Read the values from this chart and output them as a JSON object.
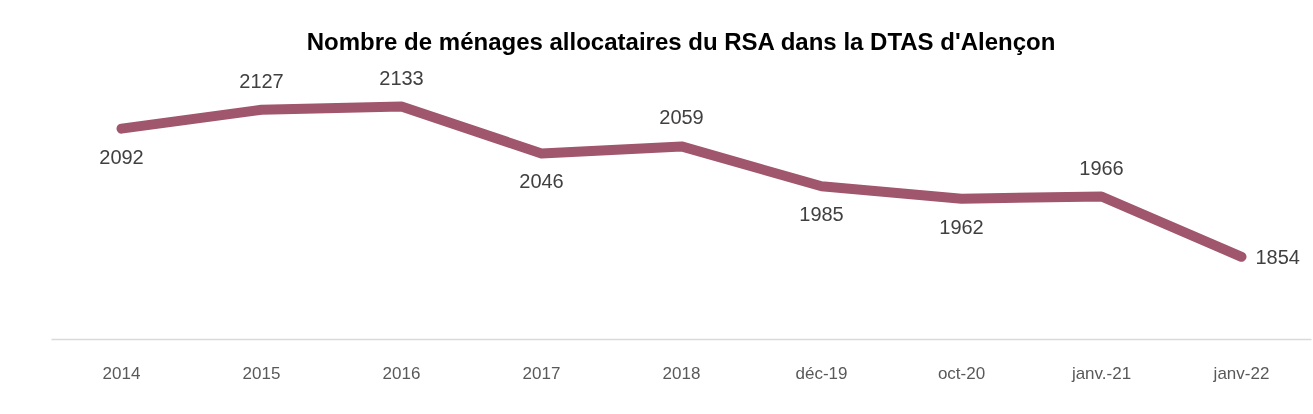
{
  "chart_data": {
    "type": "line",
    "title": "Nombre de ménages allocataires du RSA dans la DTAS d'Alençon",
    "categories": [
      "2014",
      "2015",
      "2016",
      "2017",
      "2018",
      "déc-19",
      "oct-20",
      "janv.-21",
      "janv-22"
    ],
    "series": [
      {
        "color": "#a0566c",
        "values": [
          2092,
          2127,
          2133,
          2046,
          2059,
          1985,
          1962,
          1966,
          1854
        ]
      }
    ],
    "data_labels": true,
    "tick_labels": "x",
    "line_style": "solid"
  }
}
